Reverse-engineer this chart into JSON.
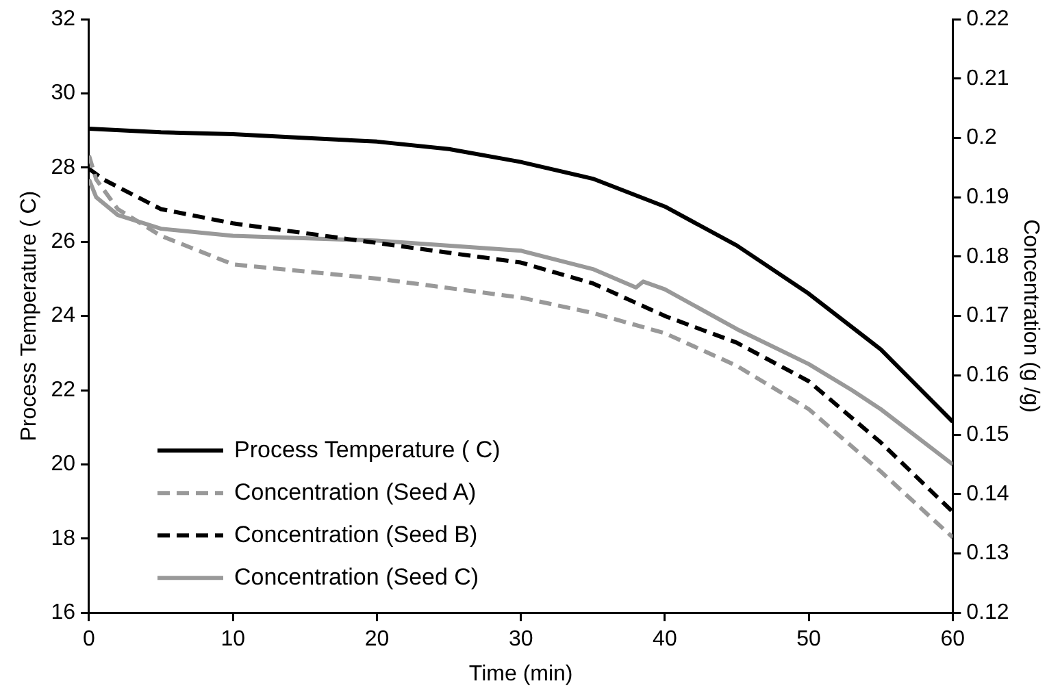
{
  "chart_data": {
    "type": "line",
    "xlabel": "Time (min)",
    "ylabel": "Process Temperature ( C)",
    "y2label": "Concentration (g /g)",
    "xlim": [
      0,
      60
    ],
    "xticks": [
      0,
      10,
      20,
      30,
      40,
      50,
      60
    ],
    "ylim": [
      16,
      32
    ],
    "yticks": [
      16,
      18,
      20,
      22,
      24,
      26,
      28,
      30,
      32
    ],
    "y2lim": [
      0.12,
      0.22
    ],
    "y2ticks": [
      0.12,
      0.13,
      0.14,
      0.15,
      0.16,
      0.17,
      0.18,
      0.19,
      0.2,
      0.21,
      0.22
    ],
    "grid": false,
    "legend": "bottom left",
    "marker": "none",
    "series": [
      {
        "name": "Process Temperature ( C)",
        "color": "#000000",
        "line_style": "solid",
        "x": [
          0,
          5,
          10,
          15,
          20,
          25,
          30,
          35,
          40,
          45,
          50,
          55,
          60
        ],
        "values": [
          29.05,
          28.95,
          28.9,
          28.8,
          28.7,
          28.5,
          28.15,
          27.7,
          26.95,
          25.9,
          24.6,
          23.1,
          21.15
        ]
      },
      {
        "name": "Concentration (Seed A)",
        "color": "#999999",
        "line_style": "dashed",
        "axis": "y2",
        "x": [
          0,
          0.5,
          2,
          5,
          10,
          20,
          30,
          35,
          40,
          45,
          50,
          55,
          60
        ],
        "values": [
          0.197,
          0.193,
          0.188,
          0.1835,
          0.1787,
          0.1763,
          0.1731,
          0.1705,
          0.1671,
          0.1616,
          0.1543,
          0.1438,
          0.1327
        ]
      },
      {
        "name": "Concentration (Seed B)",
        "color": "#000000",
        "line_style": "dashed",
        "axis": "y2",
        "x": [
          0,
          1,
          5,
          10,
          20,
          30,
          35,
          40,
          45,
          50,
          55,
          60
        ],
        "values": [
          0.1948,
          0.193,
          0.188,
          0.1856,
          0.1823,
          0.179,
          0.1755,
          0.17,
          0.1655,
          0.159,
          0.1487,
          0.137
        ]
      },
      {
        "name": "Concentration (Seed C)",
        "color": "#999999",
        "line_style": "solid",
        "axis": "y2",
        "x": [
          0,
          0.5,
          2,
          5,
          10,
          20,
          30,
          35,
          38,
          38.5,
          40,
          45,
          50,
          53,
          55,
          60
        ],
        "values": [
          0.193,
          0.19,
          0.187,
          0.1847,
          0.1835,
          0.1827,
          0.181,
          0.1779,
          0.1748,
          0.1758,
          0.1745,
          0.1678,
          0.1619,
          0.1575,
          0.1543,
          0.145
        ]
      }
    ]
  }
}
